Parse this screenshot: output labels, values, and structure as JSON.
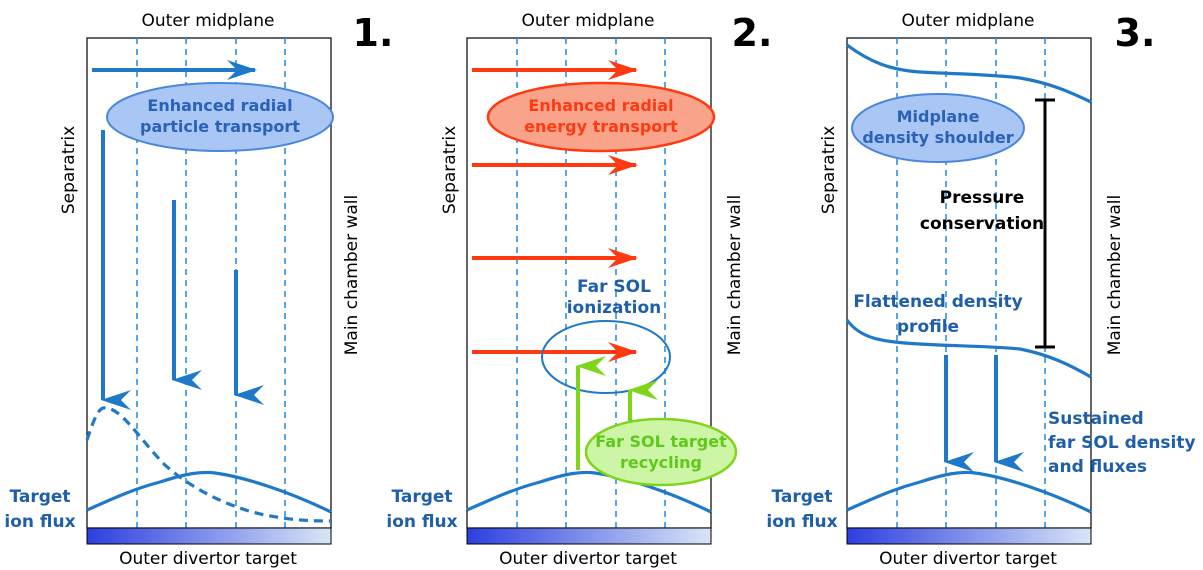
{
  "colors": {
    "blue": "#1f78c8",
    "dark_blue_text": "#1f5ea8",
    "red": "#ff3a12",
    "green": "#7fd51b",
    "gradient_start": "#2c3fe0",
    "gradient_end": "#d9e6f7"
  },
  "panels": [
    {
      "number": "1.",
      "top_label": "Outer midplane",
      "bottom_label": "Outer divertor target",
      "left_label": "Target",
      "left_label2": "ion flux",
      "side_label": "Separatrix",
      "ellipse_line1": "Enhanced radial",
      "ellipse_line2": "particle transport"
    },
    {
      "number": "2.",
      "top_label": "Outer midplane",
      "bottom_label": "Outer divertor target",
      "left_label": "Target",
      "left_label2": "ion flux",
      "side_label": "Separatrix",
      "right_wall_label": "Main chamber wall",
      "ellipse_line1": "Enhanced radial",
      "ellipse_line2": "energy transport",
      "ionization_line1": "Far SOL",
      "ionization_line2": "ionization",
      "recycling_line1": "Far SOL target",
      "recycling_line2": "recycling"
    },
    {
      "number": "3.",
      "top_label": "Outer midplane",
      "bottom_label": "Outer divertor target",
      "left_label": "Target",
      "left_label2": "ion flux",
      "side_label": "Separatrix",
      "right_wall_label": "Main chamber wall",
      "ellipse_line1": "Midplane",
      "ellipse_line2": "density shoulder",
      "pressure_line1": "Pressure",
      "pressure_line2": "conservation",
      "flattened_line1": "Flattened density",
      "flattened_line2": "profile",
      "sustained_line1": "Sustained",
      "sustained_line2": "far SOL density",
      "sustained_line3": "and fluxes"
    }
  ],
  "panel1_wall_label": "Main chamber wall"
}
